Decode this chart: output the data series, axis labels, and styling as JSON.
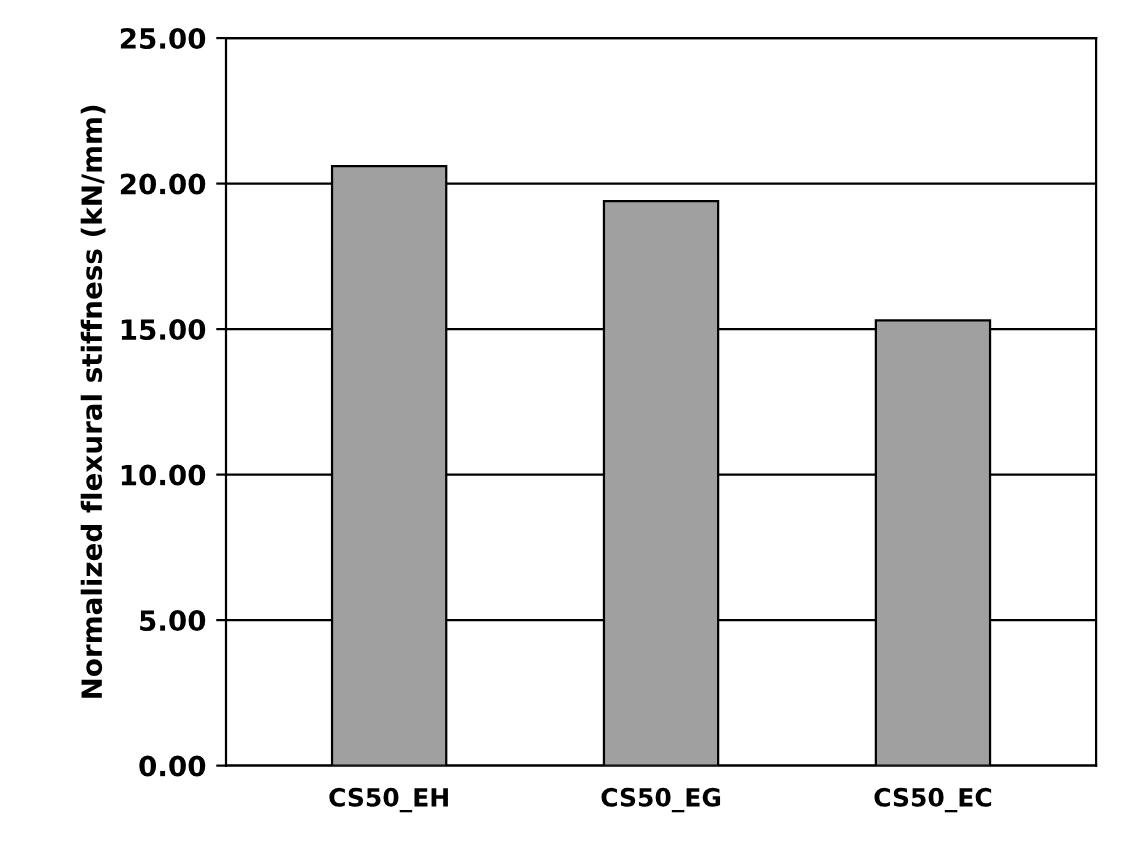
{
  "chart_data": {
    "type": "bar",
    "ylabel": "Normalized flexural stiffness (kN/mm)",
    "categories": [
      "CS50_EH",
      "CS50_EG",
      "CS50_EC"
    ],
    "values": [
      20.6,
      19.4,
      15.3
    ],
    "color": "#a0a0a0",
    "ylim": [
      0,
      25
    ],
    "yticks": [
      {
        "value": 0,
        "label": "0.00"
      },
      {
        "value": 5,
        "label": "5.00"
      },
      {
        "value": 10,
        "label": "10.00"
      },
      {
        "value": 15,
        "label": "15.00"
      },
      {
        "value": 20,
        "label": "20.00"
      },
      {
        "value": 25,
        "label": "25.00"
      }
    ],
    "grid": "y"
  }
}
